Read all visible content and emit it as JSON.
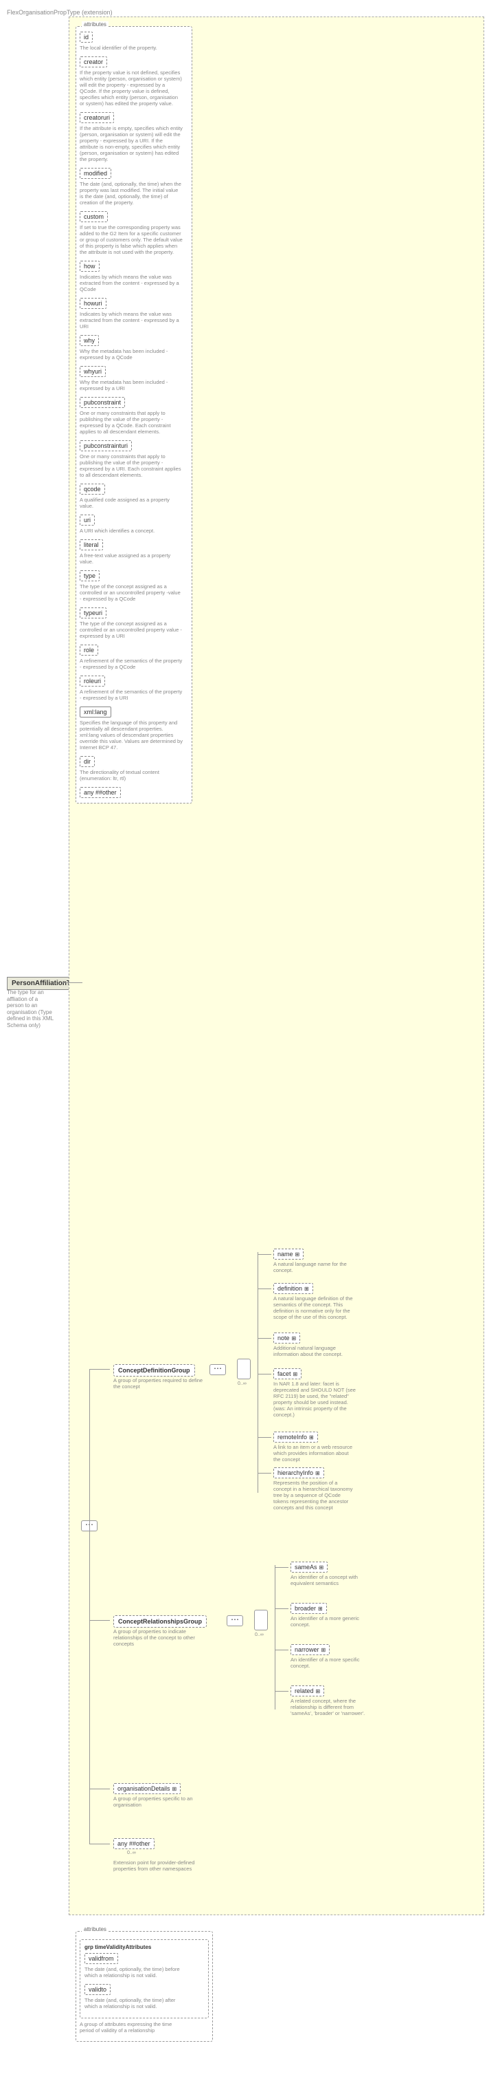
{
  "root": {
    "name": "PersonAffiliationType",
    "desc": "The type for an affliation of a person to an organisation (Type defined in this XML Schema only)"
  },
  "extension": {
    "label": "FlexOrganisationPropType (extension)"
  },
  "attributes_label": "attributes",
  "attrs": [
    {
      "name": "id",
      "desc": "The local identifier of the property."
    },
    {
      "name": "creator",
      "desc": "If the property value is not defined, specifies which entity (person, organisation or system) will edit the property - expressed by a QCode. If the property value is defined, specifies which entity (person, organisation or system) has edited the property value."
    },
    {
      "name": "creatoruri",
      "desc": "If the attribute is empty, specifies which entity (person, organisation or system) will edit the property - expressed by a URI. If the attribute is non-empty, specifies which entity (person, organisation or system) has edited the property."
    },
    {
      "name": "modified",
      "desc": "The date (and, optionally, the time) when the property was last modified. The initial value is the date (and, optionally, the time) of creation of the property."
    },
    {
      "name": "custom",
      "desc": "If set to true the corresponding property was added to the G2 Item for a specific customer or group of customers only. The default value of this property is false which applies when the attribute is not used with the property."
    },
    {
      "name": "how",
      "desc": "Indicates by which means the value was extracted from the content - expressed by a QCode"
    },
    {
      "name": "howuri",
      "desc": "Indicates by which means the value was extracted from the content - expressed by a URI"
    },
    {
      "name": "why",
      "desc": "Why the metadata has been included - expressed by a QCode"
    },
    {
      "name": "whyuri",
      "desc": "Why the metadata has been included - expressed by a URI"
    },
    {
      "name": "pubconstraint",
      "desc": "One or many constraints that apply to publishing the value of the property - expressed by a QCode. Each constraint applies to all descendant elements."
    },
    {
      "name": "pubconstrainturi",
      "desc": "One or many constraints that apply to publishing the value of the property - expressed by a URI. Each constraint applies to all descendant elements."
    },
    {
      "name": "qcode",
      "desc": "A qualified code assigned as a property value."
    },
    {
      "name": "uri",
      "desc": "A URI which identifies a concept."
    },
    {
      "name": "literal",
      "desc": "A free-text value assigned as a property value."
    },
    {
      "name": "type",
      "desc": "The type of the concept assigned as a controlled or an uncontrolled property -value - expressed by a QCode"
    },
    {
      "name": "typeuri",
      "desc": "The type of the concept assigned as a controlled or an uncontrolled property value - expressed by a URI"
    },
    {
      "name": "role",
      "desc": "A refinement of the semantics of the property - expressed by a QCode"
    },
    {
      "name": "roleuri",
      "desc": "A refinement of the semantics of the property - expressed by a URI"
    },
    {
      "name": "xml:lang",
      "desc": "Specifies the language of this property and potentially all descendant properties. xml:lang values of descendant properties override this value. Values are determined by Internet BCP 47.",
      "solid": true
    },
    {
      "name": "dir",
      "desc": "The directionality of textual content (enumeration: ltr, rtl)"
    },
    {
      "name": "any ##other",
      "desc": ""
    }
  ],
  "cdg": {
    "name": "ConceptDefinitionGroup",
    "desc": "A group of properties required to define the concept"
  },
  "cdg_children": [
    {
      "name": "name",
      "desc": "A natural language name for the concept."
    },
    {
      "name": "definition",
      "desc": "A natural language definition of the semantics of the concept. This definition is normative only for the scope of the use of this concept."
    },
    {
      "name": "note",
      "desc": "Additional natural language information about the concept."
    },
    {
      "name": "facet",
      "desc": "In NAR 1.8 and later: facet is deprecated and SHOULD NOT (see RFC 2119) be used, the \"related\" property should be used instead.(was: An intrinsic property of the concept.)"
    },
    {
      "name": "remoteInfo",
      "desc": "A link to an item or a web resource which provides information about the concept"
    },
    {
      "name": "hierarchyInfo",
      "desc": "Represents the position of a concept in a hierarchical taxonomy tree by a sequence of QCode tokens representing the ancestor concepts and this concept"
    }
  ],
  "crg": {
    "name": "ConceptRelationshipsGroup",
    "desc": "A group of properties to indicate relationships of the concept to other concepts"
  },
  "crg_children": [
    {
      "name": "sameAs",
      "desc": "An identifier of a concept with equivalent semantics"
    },
    {
      "name": "broader",
      "desc": "An identifier of a more generic concept."
    },
    {
      "name": "narrower",
      "desc": "An identifier of a more specific concept."
    },
    {
      "name": "related",
      "desc": "A related concept, where the relationship is different from 'sameAs', 'broader' or 'narrower'."
    }
  ],
  "orgDetails": {
    "name": "organisationDetails",
    "desc": "A group of properties specific to an organisation"
  },
  "anyOther": {
    "name": "any ##other",
    "desc": "Extension point for provider-defined properties from other namespaces",
    "occ": "0..∞"
  },
  "validity": {
    "group_name": "grp timeValidityAttributes",
    "validfrom": {
      "name": "validfrom",
      "desc": "The date (and, optionally, the time) before which a relationship is not valid."
    },
    "validto": {
      "name": "validto",
      "desc": "The date (and, optionally, the time) after which a relationship is not valid."
    },
    "group_desc": "A group of attributes expressing the time period of validity of a relationship"
  },
  "occ_label": "0..∞"
}
